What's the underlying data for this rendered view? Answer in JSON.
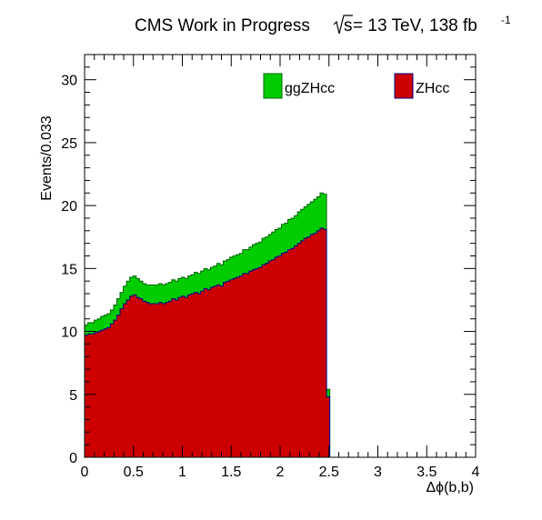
{
  "title": {
    "main": "CMS Work in Progress",
    "energy_prefix": "s",
    "energy_rest": " = 13 TeV, 138 fb",
    "sup": "-1"
  },
  "chart_data": {
    "type": "area",
    "histogram": "stacked",
    "xlabel": "Δϕ(b,b)",
    "ylabel": "Events/0.033",
    "xlim": [
      0,
      4
    ],
    "ylim": [
      0,
      32
    ],
    "xticks": [
      "0",
      "0.5",
      "1",
      "1.5",
      "2",
      "2.5",
      "3",
      "3.5",
      "4"
    ],
    "yticks": [
      "0",
      "5",
      "10",
      "15",
      "20",
      "25",
      "30"
    ],
    "bin_width": 0.033,
    "legend_position": "top",
    "series": [
      {
        "name": "ZHcc",
        "color": "#cc0000",
        "values": [
          9.7,
          9.8,
          9.8,
          9.9,
          10.0,
          10.1,
          10.2,
          10.3,
          10.6,
          10.9,
          11.3,
          11.8,
          12.2,
          12.5,
          12.8,
          12.9,
          12.7,
          12.6,
          12.4,
          12.3,
          12.2,
          12.2,
          12.2,
          12.3,
          12.2,
          12.3,
          12.4,
          12.6,
          12.5,
          12.7,
          12.8,
          12.7,
          12.9,
          13.0,
          13.1,
          13.0,
          13.2,
          13.4,
          13.3,
          13.5,
          13.6,
          13.7,
          13.6,
          13.9,
          14.0,
          14.1,
          14.2,
          14.3,
          14.4,
          14.6,
          14.6,
          14.8,
          14.9,
          15.0,
          15.1,
          15.3,
          15.4,
          15.6,
          15.7,
          15.9,
          16.0,
          16.2,
          16.3,
          16.5,
          16.6,
          16.8,
          17.0,
          17.2,
          17.4,
          17.5,
          17.7,
          17.8,
          18.0,
          18.2,
          18.1,
          4.8
        ],
        "color_edge": "#8b0000"
      },
      {
        "name": "ggZHcc",
        "color": "#00cc00",
        "values": [
          0.8,
          0.9,
          0.9,
          1.0,
          1.0,
          1.1,
          1.1,
          1.1,
          1.1,
          1.2,
          1.3,
          1.3,
          1.4,
          1.5,
          1.5,
          1.5,
          1.5,
          1.4,
          1.4,
          1.4,
          1.5,
          1.5,
          1.5,
          1.5,
          1.5,
          1.5,
          1.5,
          1.5,
          1.5,
          1.5,
          1.5,
          1.5,
          1.5,
          1.5,
          1.6,
          1.6,
          1.6,
          1.6,
          1.6,
          1.6,
          1.6,
          1.7,
          1.7,
          1.7,
          1.7,
          1.8,
          1.8,
          1.8,
          1.8,
          1.9,
          1.9,
          1.9,
          2.0,
          2.0,
          2.0,
          2.1,
          2.1,
          2.1,
          2.2,
          2.2,
          2.2,
          2.3,
          2.3,
          2.4,
          2.4,
          2.4,
          2.5,
          2.5,
          2.5,
          2.6,
          2.6,
          2.7,
          2.7,
          2.8,
          2.8,
          0.6
        ]
      }
    ]
  }
}
